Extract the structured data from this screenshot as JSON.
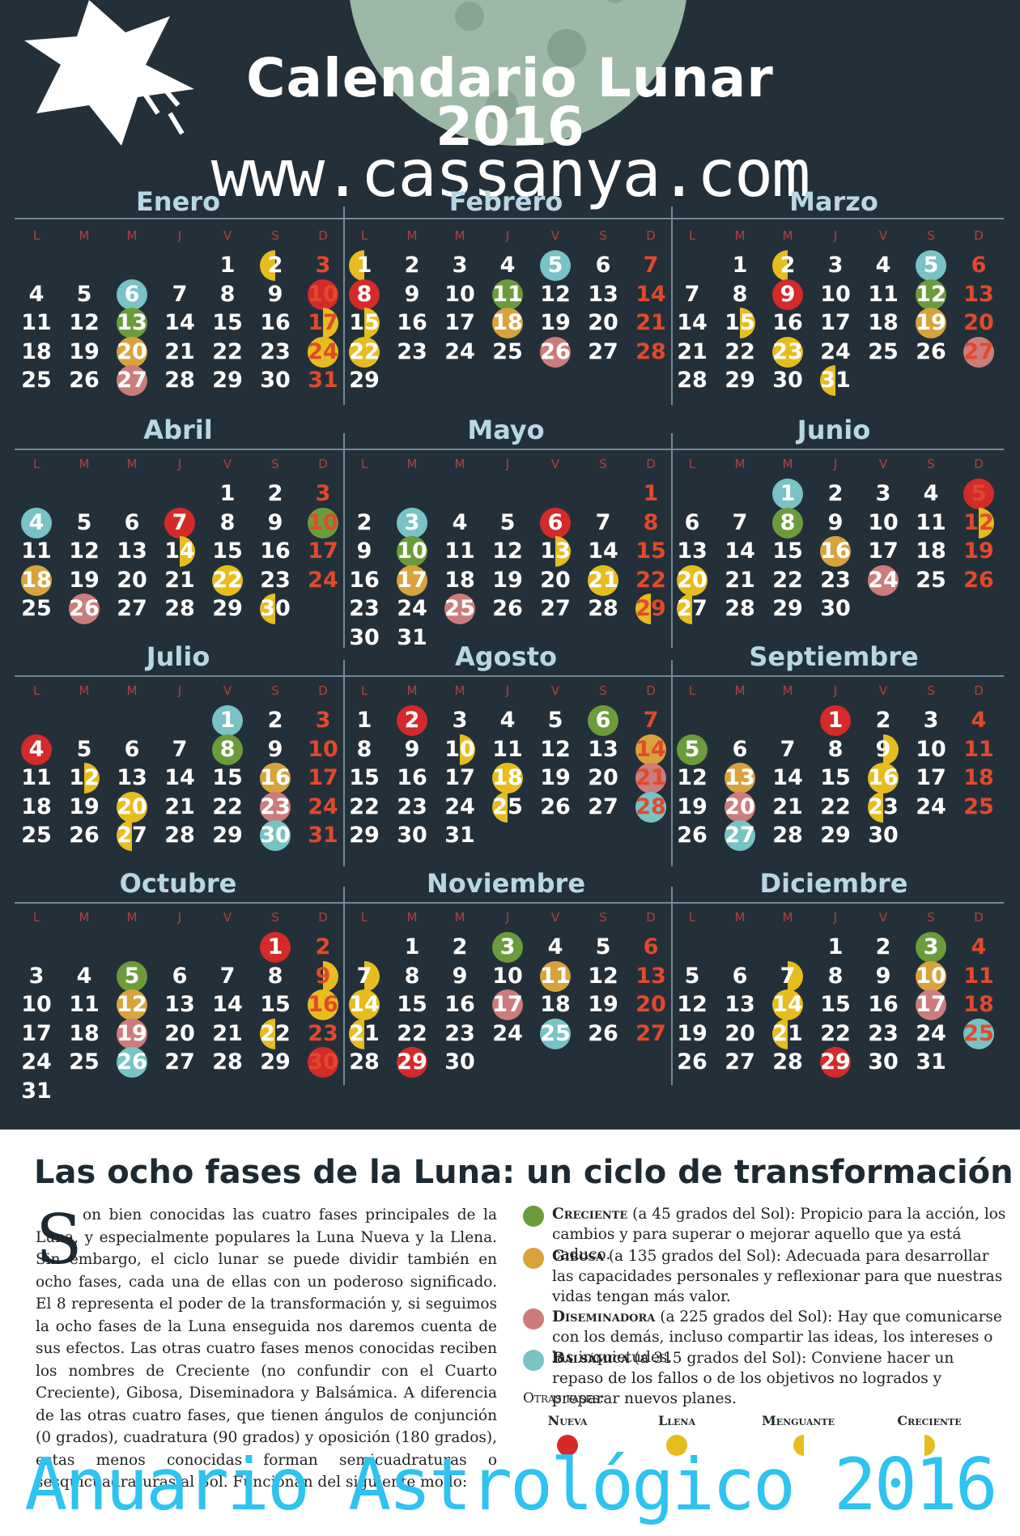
{
  "header": {
    "title_line1": "Calendario Lunar",
    "title_line2": "2016",
    "website": "www.cassanya.com"
  },
  "weekdays": [
    "L",
    "M",
    "M",
    "J",
    "V",
    "S",
    "D"
  ],
  "months": [
    {
      "name": "Enero",
      "start": 4,
      "days": 31,
      "phases": {
        "2": "waning",
        "3": "",
        "6": "bals",
        "10": "new",
        "13": "creciente",
        "17": "waxing",
        "20": "gibosa",
        "24": "full",
        "27": "disem"
      }
    },
    {
      "name": "Febrero",
      "start": 0,
      "days": 29,
      "phases": {
        "1": "waning",
        "5": "bals",
        "8": "new",
        "11": "creciente",
        "15": "waxing",
        "18": "gibosa",
        "22": "full",
        "26": "disem"
      }
    },
    {
      "name": "Marzo",
      "start": 1,
      "days": 31,
      "phases": {
        "2": "waning",
        "5": "bals",
        "9": "new",
        "12": "creciente",
        "15": "waxing",
        "19": "gibosa",
        "23": "full",
        "27": "disem",
        "31": "waning"
      }
    },
    {
      "name": "Abril",
      "start": 4,
      "days": 30,
      "phases": {
        "4": "bals",
        "7": "new",
        "10": "creciente",
        "14": "waxing",
        "18": "gibosa",
        "22": "full",
        "26": "disem",
        "30": "waning"
      }
    },
    {
      "name": "Mayo",
      "start": 6,
      "days": 31,
      "phases": {
        "3": "bals",
        "6": "new",
        "10": "creciente",
        "13": "waxing",
        "17": "gibosa",
        "21": "full",
        "25": "disem",
        "29": "waning"
      }
    },
    {
      "name": "Junio",
      "start": 2,
      "days": 30,
      "phases": {
        "1": "bals",
        "5": "new",
        "8": "creciente",
        "12": "waxing",
        "16": "gibosa",
        "20": "full",
        "24": "disem",
        "27": "waning"
      }
    },
    {
      "name": "Julio",
      "start": 4,
      "days": 31,
      "phases": {
        "1": "bals",
        "4": "new",
        "8": "creciente",
        "12": "waxing",
        "16": "gibosa",
        "20": "full",
        "23": "disem",
        "27": "waning",
        "30": "bals"
      }
    },
    {
      "name": "Agosto",
      "start": 0,
      "days": 31,
      "phases": {
        "2": "new",
        "6": "creciente",
        "10": "waxing",
        "14": "gibosa",
        "18": "full",
        "21": "disem",
        "25": "waning",
        "28": "bals"
      }
    },
    {
      "name": "Septiembre",
      "start": 3,
      "days": 30,
      "phases": {
        "1": "new",
        "5": "creciente",
        "9": "waxing",
        "13": "gibosa",
        "16": "full",
        "20": "disem",
        "23": "waning",
        "27": "bals"
      }
    },
    {
      "name": "Octubre",
      "start": 5,
      "days": 31,
      "phases": {
        "1": "new",
        "5": "creciente",
        "9": "waxing",
        "12": "gibosa",
        "16": "full",
        "19": "disem",
        "22": "waning",
        "26": "bals",
        "30": "new"
      }
    },
    {
      "name": "Noviembre",
      "start": 1,
      "days": 30,
      "phases": {
        "3": "creciente",
        "7": "waxing",
        "11": "gibosa",
        "14": "full",
        "17": "disem",
        "21": "waning",
        "25": "bals",
        "29": "new"
      }
    },
    {
      "name": "Diciembre",
      "start": 3,
      "days": 31,
      "phases": {
        "3": "creciente",
        "7": "waxing",
        "10": "gibosa",
        "14": "full",
        "17": "disem",
        "21": "waning",
        "25": "bals",
        "29": "new"
      }
    }
  ],
  "info": {
    "title": "Las ocho fases de la Luna: un ciclo de transformación",
    "drop_cap": "S",
    "paragraph": "on bien conocidas las cuatro fases principales de la Luna, y especialmente populares la Luna Nueva y la Llena. Sin embargo, el ciclo lunar se puede dividir también en ocho fases, cada una de ellas con un poderoso significado. El 8 representa el poder de la transformación y, si seguimos la ocho fases de la Luna enseguida nos daremos cuenta de sus efectos. Las otras cuatro fases menos conocidas reciben los nombres de Creciente (no confundir con el Cuarto Creciente), Gibosa, Diseminadora y Balsámica. A diferencia de las otras cuatro fases, que tienen ángulos de conjunción (0 grados), cuadratura (90 grados) y oposición (180 grados), estas menos conocidas forman semicuadraturas o sesquicuadraturas al Sol. Funcionan del siguiente modo:",
    "phases": [
      {
        "name": "Creciente",
        "detail": "(a 45 grados del Sol):",
        "desc": "Propicio para la acción, los cambios y para superar o mejorar aquello que ya está caduco.",
        "color": "#6b9c3b"
      },
      {
        "name": "Gibosa",
        "detail": "(a 135 grados del Sol):",
        "desc": "Adecuada para desarrollar las capacidades personales y reflexionar para que nuestras vidas tengan más valor.",
        "color": "#d8a23d"
      },
      {
        "name": "Diseminadora",
        "detail": "(a 225 grados del Sol):",
        "desc": "Hay que comunicarse con los demás, incluso compartir las ideas, los intereses o las inquietudes.",
        "color": "#cc7c7c"
      },
      {
        "name": "Balsámica",
        "detail": "(a 315 grados del Sol):",
        "desc": "Conviene hacer un repaso de los fallos o de los objetivos no logrados y preparar nuevos planes.",
        "color": "#77c3c6"
      }
    ],
    "otras_label": "Otras fases:",
    "otras": [
      {
        "label": "Nueva",
        "icon": "new-moon-icon",
        "color": "#d42a2a"
      },
      {
        "label": "Llena",
        "icon": "full-moon-icon",
        "color": "#e7bc1f"
      },
      {
        "label": "Menguante",
        "icon": "waning-moon-icon",
        "color": "#e7bc1f"
      },
      {
        "label": "Creciente",
        "icon": "waxing-moon-icon",
        "color": "#e7bc1f"
      }
    ]
  },
  "footer": "Anuario Astrológico 2016"
}
